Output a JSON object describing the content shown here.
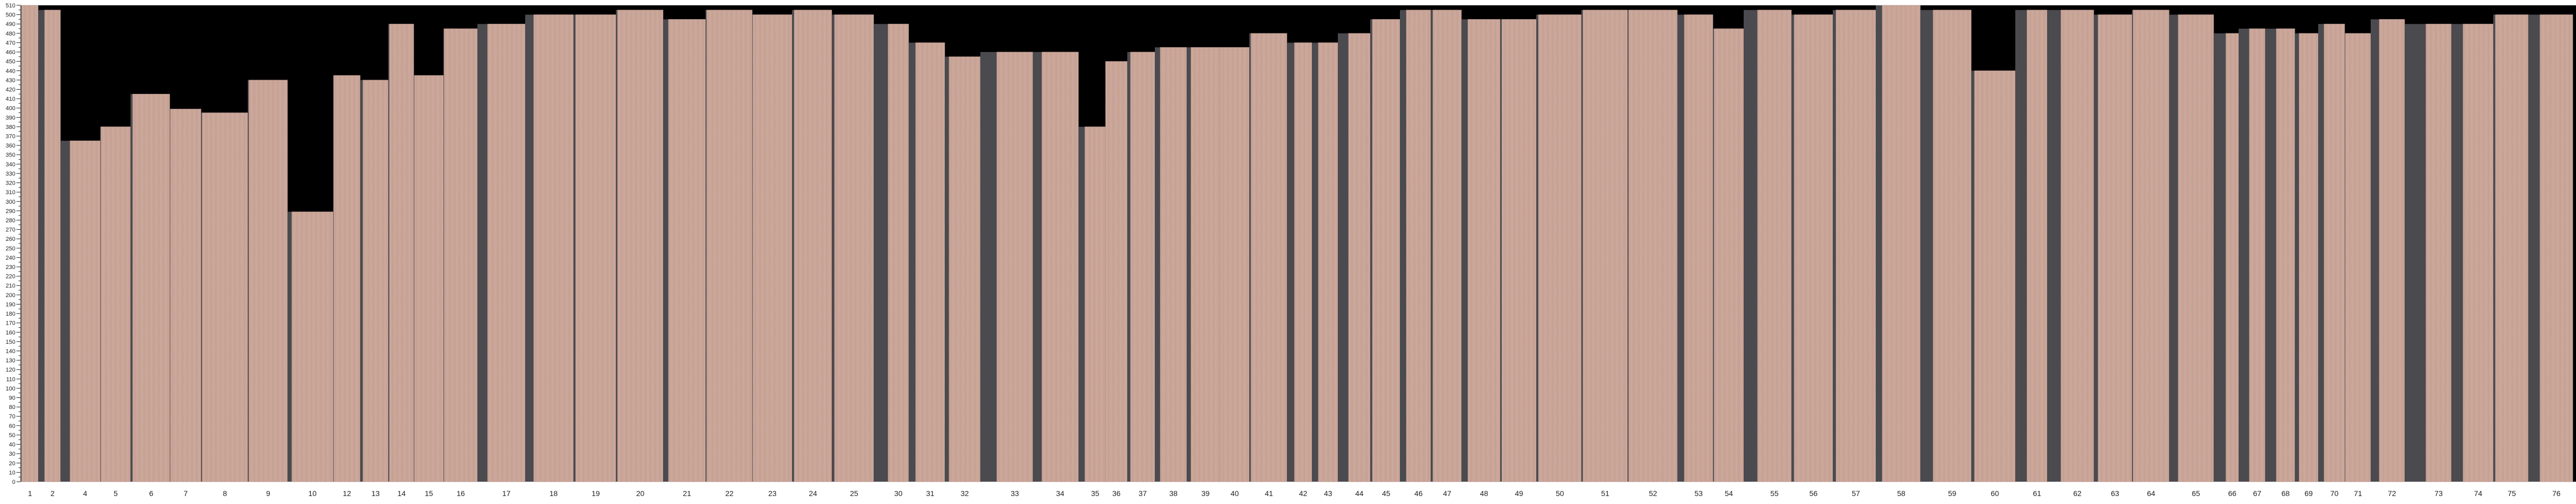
{
  "chart_data": {
    "type": "bar",
    "title": "",
    "xlabel": "",
    "ylabel": "",
    "ylim": [
      0,
      510
    ],
    "ytick_step": 10,
    "ytick_minor_step": 5,
    "grid": false,
    "categories": [
      "1",
      "2",
      "4",
      "5",
      "6",
      "7",
      "8",
      "9",
      "10",
      "12",
      "13",
      "14",
      "15",
      "16",
      "17",
      "18",
      "19",
      "20",
      "21",
      "22",
      "23",
      "24",
      "25",
      "30",
      "31",
      "32",
      "33",
      "34",
      "35",
      "36",
      "37",
      "38",
      "39",
      "40",
      "41",
      "42",
      "43",
      "44",
      "45",
      "46",
      "47",
      "48",
      "49",
      "50",
      "51",
      "52",
      "53",
      "54",
      "55",
      "56",
      "57",
      "58",
      "59",
      "60",
      "61",
      "62",
      "63",
      "64",
      "65",
      "66",
      "67",
      "68",
      "69",
      "70",
      "71",
      "72",
      "73",
      "74",
      "75",
      "76"
    ],
    "values": [
      510,
      505,
      365,
      380,
      415,
      399,
      395,
      430,
      289,
      435,
      430,
      490,
      435,
      485,
      490,
      500,
      500,
      505,
      495,
      505,
      500,
      505,
      500,
      490,
      470,
      455,
      460,
      460,
      380,
      450,
      460,
      465,
      465,
      465,
      480,
      470,
      470,
      480,
      495,
      505,
      505,
      495,
      495,
      500,
      505,
      505,
      500,
      485,
      505,
      500,
      505,
      510,
      505,
      440,
      505,
      505,
      500,
      505,
      500,
      480,
      485,
      485,
      480,
      490,
      480,
      495,
      490,
      490,
      500,
      500
    ],
    "colors": {
      "bar": "#c9a598",
      "bar_grain": "#b8928a",
      "shadow": "#4a4a4f",
      "background": "#000000",
      "axis": "#222222"
    },
    "bar_style": "wood-veneer-strip"
  }
}
